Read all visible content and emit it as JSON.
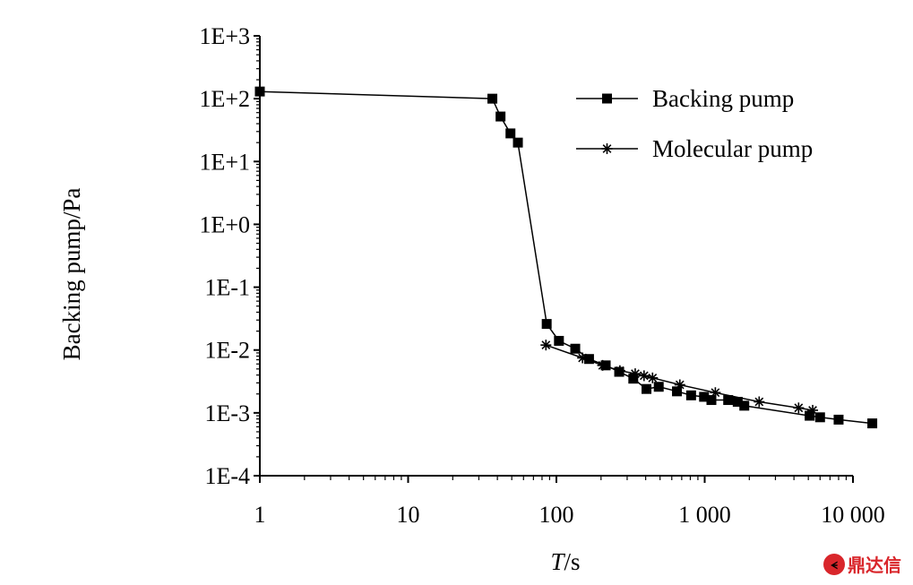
{
  "chart_data": {
    "type": "line",
    "title": "",
    "xlabel_italic": "T",
    "xlabel_rest": "/s",
    "ylabel": "Backing pump/Pa",
    "xscale": "log",
    "yscale": "log",
    "xlim": [
      1,
      10000
    ],
    "ylim": [
      0.0001,
      1000
    ],
    "x_tick_values": [
      1,
      10,
      100,
      1000,
      10000
    ],
    "x_tick_labels": [
      "1",
      "10",
      "100",
      "1 000",
      "10 000"
    ],
    "y_tick_values": [
      1000,
      100,
      10,
      1,
      0.1,
      0.01,
      0.001,
      0.0001
    ],
    "y_tick_labels": [
      "1E+3",
      "1E+2",
      "1E+1",
      "1E+0",
      "1E-1",
      "1E-2",
      "1E-3",
      "1E-4"
    ],
    "grid": false,
    "legend_position": "top-right",
    "series": [
      {
        "name": "Backing pump",
        "marker": "square",
        "color": "#000000",
        "points": [
          [
            1,
            130
          ],
          [
            37,
            100
          ],
          [
            42,
            52
          ],
          [
            49,
            28
          ],
          [
            55,
            20
          ],
          [
            86,
            0.026
          ],
          [
            104,
            0.014
          ],
          [
            134,
            0.0105
          ],
          [
            166,
            0.0072
          ],
          [
            215,
            0.0057
          ],
          [
            265,
            0.0045
          ],
          [
            330,
            0.0035
          ],
          [
            405,
            0.0024
          ],
          [
            490,
            0.0026
          ],
          [
            650,
            0.0022
          ],
          [
            810,
            0.0019
          ],
          [
            990,
            0.0018
          ],
          [
            1110,
            0.0016
          ],
          [
            1440,
            0.0016
          ],
          [
            1670,
            0.0015
          ],
          [
            1850,
            0.0013
          ],
          [
            5100,
            0.0009
          ],
          [
            6000,
            0.00085
          ],
          [
            8000,
            0.00078
          ],
          [
            13500,
            0.00068
          ]
        ]
      },
      {
        "name": "Molecular pump",
        "marker": "asterisk",
        "color": "#000000",
        "points": [
          [
            85,
            0.012
          ],
          [
            150,
            0.0075
          ],
          [
            205,
            0.0057
          ],
          [
            268,
            0.0047
          ],
          [
            340,
            0.0042
          ],
          [
            390,
            0.0039
          ],
          [
            445,
            0.0036
          ],
          [
            680,
            0.0028
          ],
          [
            1180,
            0.0021
          ],
          [
            2330,
            0.0015
          ],
          [
            4300,
            0.0012
          ],
          [
            5350,
            0.0011
          ]
        ]
      }
    ]
  },
  "watermark": {
    "text": "鼎达信",
    "color": "#d9262b"
  }
}
